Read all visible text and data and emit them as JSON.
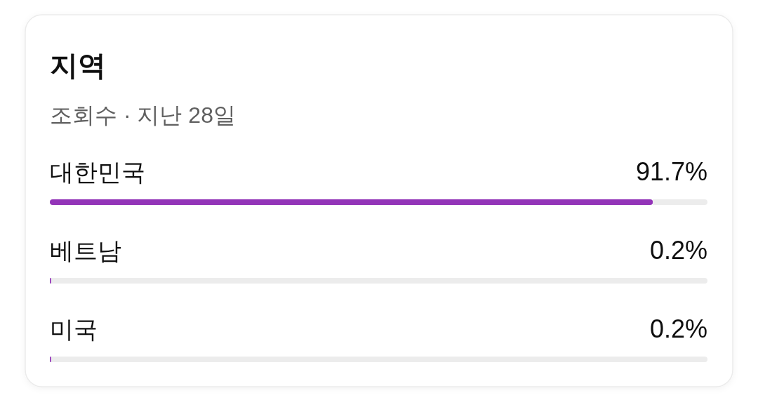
{
  "chart_data": {
    "type": "bar",
    "orientation": "horizontal",
    "title": "지역",
    "subtitle": "조회수 · 지난 28일",
    "categories": [
      "대한민국",
      "베트남",
      "미국"
    ],
    "values": [
      91.7,
      0.2,
      0.2
    ],
    "value_labels": [
      "91.7%",
      "0.2%",
      "0.2%"
    ],
    "color": "#9334b8",
    "xlim": [
      0,
      100
    ]
  }
}
